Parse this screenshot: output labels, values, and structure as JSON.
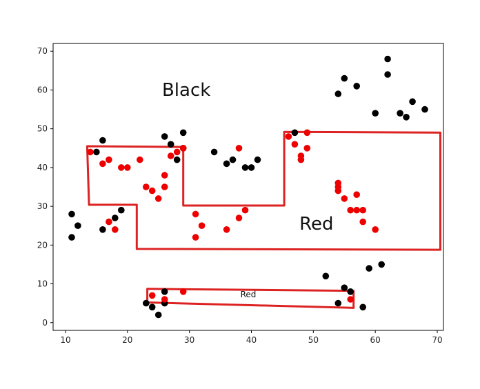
{
  "chart_data": {
    "type": "scatter",
    "title": "",
    "xlabel": "",
    "ylabel": "",
    "xlim": [
      8,
      71
    ],
    "ylim": [
      -2,
      72
    ],
    "xticks": [
      10,
      20,
      30,
      40,
      50,
      60,
      70
    ],
    "yticks": [
      0,
      10,
      20,
      30,
      40,
      50,
      60,
      70
    ],
    "grid": false,
    "series": [
      {
        "color": "#000000",
        "points": [
          [
            11,
            28
          ],
          [
            11,
            22
          ],
          [
            12,
            25
          ],
          [
            15,
            44
          ],
          [
            16,
            47
          ],
          [
            16,
            24
          ],
          [
            18,
            27
          ],
          [
            19,
            29
          ],
          [
            26,
            48
          ],
          [
            27,
            46
          ],
          [
            28,
            42
          ],
          [
            29,
            45
          ],
          [
            29,
            49
          ],
          [
            34,
            44
          ],
          [
            36,
            41
          ],
          [
            37,
            42
          ],
          [
            39,
            40
          ],
          [
            40,
            40
          ],
          [
            41,
            42
          ],
          [
            47,
            49
          ],
          [
            54,
            59
          ],
          [
            55,
            63
          ],
          [
            57,
            61
          ],
          [
            60,
            54
          ],
          [
            62,
            68
          ],
          [
            62,
            64
          ],
          [
            64,
            54
          ],
          [
            65,
            53
          ],
          [
            66,
            57
          ],
          [
            68,
            55
          ],
          [
            52,
            12
          ],
          [
            59,
            14
          ],
          [
            61,
            15
          ],
          [
            54,
            5
          ],
          [
            55,
            9
          ],
          [
            56,
            8
          ],
          [
            58,
            4
          ],
          [
            23,
            5
          ],
          [
            24,
            4
          ],
          [
            25,
            2
          ],
          [
            26,
            5
          ],
          [
            26,
            8
          ]
        ]
      },
      {
        "color": "#ee0000",
        "points": [
          [
            14,
            44
          ],
          [
            16,
            41
          ],
          [
            17,
            42
          ],
          [
            19,
            40
          ],
          [
            20,
            40
          ],
          [
            22,
            42
          ],
          [
            17,
            26
          ],
          [
            18,
            24
          ],
          [
            23,
            35
          ],
          [
            24,
            34
          ],
          [
            25,
            32
          ],
          [
            26,
            35
          ],
          [
            26,
            38
          ],
          [
            27,
            43
          ],
          [
            28,
            44
          ],
          [
            29,
            45
          ],
          [
            31,
            28
          ],
          [
            31,
            22
          ],
          [
            32,
            25
          ],
          [
            36,
            24
          ],
          [
            38,
            27
          ],
          [
            38,
            45
          ],
          [
            39,
            29
          ],
          [
            46,
            48
          ],
          [
            47,
            46
          ],
          [
            48,
            43
          ],
          [
            48,
            42
          ],
          [
            49,
            45
          ],
          [
            49,
            49
          ],
          [
            54,
            36
          ],
          [
            54,
            35
          ],
          [
            54,
            34
          ],
          [
            55,
            32
          ],
          [
            56,
            29
          ],
          [
            57,
            33
          ],
          [
            57,
            29
          ],
          [
            58,
            29
          ],
          [
            58,
            26
          ],
          [
            60,
            24
          ],
          [
            24,
            7
          ],
          [
            26,
            6
          ],
          [
            29,
            8
          ],
          [
            56,
            6
          ]
        ]
      }
    ],
    "regions": [
      {
        "color": "#dd2222",
        "label": "",
        "vertices": [
          [
            13.5,
            45.5
          ],
          [
            29,
            45.3
          ],
          [
            29,
            30.2
          ],
          [
            45.3,
            30.2
          ],
          [
            45.3,
            49.2
          ],
          [
            70.5,
            49
          ],
          [
            70.5,
            18.8
          ],
          [
            21.5,
            19
          ],
          [
            21.5,
            30.4
          ],
          [
            13.8,
            30.4
          ]
        ]
      },
      {
        "color": "#dd2222",
        "label": "Red",
        "vertices": [
          [
            23.2,
            8.7
          ],
          [
            56.5,
            8.2
          ],
          [
            56.5,
            3.8
          ],
          [
            23.2,
            5.2
          ]
        ]
      }
    ],
    "annotations": [
      {
        "text": "Black",
        "x": 29.5,
        "y": 58.5,
        "size": "big"
      },
      {
        "text": "Red",
        "x": 50.5,
        "y": 24,
        "size": "big"
      },
      {
        "text": "Red",
        "x": 39.5,
        "y": 6.5,
        "size": "small"
      }
    ]
  }
}
